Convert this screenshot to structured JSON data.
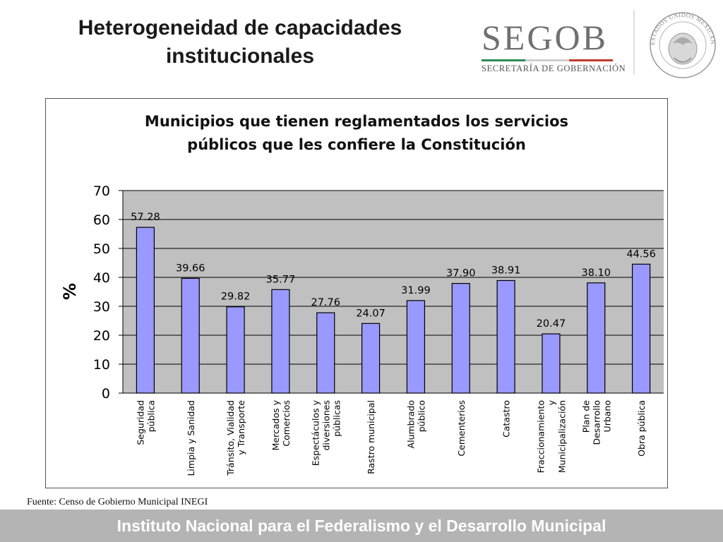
{
  "slide": {
    "title": "Heterogeneidad de capacidades\ninstitucionales",
    "logo_text": "SEGOB",
    "logo_subtitle": "SECRETARÍA DE GOBERNACIÓN",
    "seal_text": "ESTADOS UNIDOS MEXICANOS",
    "source_note": "Fuente: Censo de Gobierno Municipal INEGI",
    "footer": "Instituto Nacional para el Federalismo y el Desarrollo Municipal"
  },
  "colors": {
    "bar_fill": "#9999ff",
    "bar_stroke": "#000000",
    "plot_background": "#c0c0c0",
    "footer_band": "#b4b4b4",
    "segob_green": "#2e8b57",
    "segob_red": "#c0392b"
  },
  "chart_data": {
    "type": "bar",
    "title": "Municipios que tienen reglamentados los servicios\npúblicos que les confiere la Constitución",
    "ylabel": "%",
    "xlabel": "",
    "ylim": [
      0,
      70
    ],
    "yticks": [
      0,
      10,
      20,
      30,
      40,
      50,
      60,
      70
    ],
    "grid": true,
    "legend": "none",
    "categories": [
      "Seguridad pública",
      "Limpia y Sanidad",
      "Tránsito, Vialidad y Transporte",
      "Mercados y Comercios",
      "Espectáculos y diversiones públicas",
      "Rastro municipal",
      "Alumbrado público",
      "Cementerios",
      "Catastro",
      "Fraccionamiento y Municipalización",
      "Plan de Desarrollo Urbano",
      "Obra pública"
    ],
    "category_label_lines": [
      [
        "Seguridad",
        "pública"
      ],
      [
        "Limpia y Sanidad"
      ],
      [
        "Tránsito, Vialidad",
        "y Transporte"
      ],
      [
        "Mercados y",
        "Comercios"
      ],
      [
        "Espectáculos y",
        "diversiones",
        "públicas"
      ],
      [
        "Rastro municipal"
      ],
      [
        "Alumbrado",
        "público"
      ],
      [
        "Cementerios"
      ],
      [
        "Catastro"
      ],
      [
        "Fraccionamiento",
        "y",
        "Municipalización"
      ],
      [
        "Plan de",
        "Desarrollo",
        "Urbano"
      ],
      [
        "Obra pública"
      ]
    ],
    "values": [
      57.28,
      39.66,
      29.82,
      35.77,
      27.76,
      24.07,
      31.99,
      37.9,
      38.91,
      20.47,
      38.1,
      44.56
    ],
    "value_labels": [
      "57.28",
      "39.66",
      "29.82",
      "35.77",
      "27.76",
      "24.07",
      "31.99",
      "37.90",
      "38.91",
      "20.47",
      "38.10",
      "44.56"
    ]
  }
}
